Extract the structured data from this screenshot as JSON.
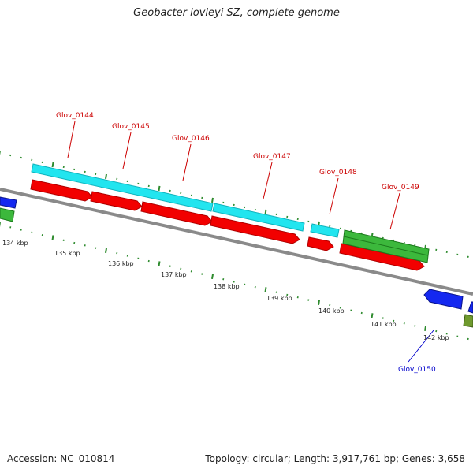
{
  "title": "Geobacter lovleyi SZ, complete genome",
  "footer": {
    "accession": "Accession: NC_010814",
    "summary": "Topology: circular; Length: 3,917,761 bp; Genes: 3,658"
  },
  "colors": {
    "backbone": "#8a8a8a",
    "tick": "#2e8b2e",
    "gene_label_red": "#cc0000",
    "gene_label_blue": "#0000cc",
    "cyan": "#22e5ef",
    "red": "#f20000",
    "green": "#3cb83c",
    "blue": "#1428f0",
    "olive": "#6f9a2e"
  },
  "map": {
    "tick_labels": [
      "134 kbp",
      "135 kbp",
      "136 kbp",
      "137 kbp",
      "138 kbp",
      "139 kbp",
      "140 kbp",
      "141 kbp",
      "142 kbp"
    ],
    "gene_labels": [
      {
        "text": "Glov_0144",
        "color": "red"
      },
      {
        "text": "Glov_0145",
        "color": "red"
      },
      {
        "text": "Glov_0146",
        "color": "red"
      },
      {
        "text": "Glov_0147",
        "color": "red"
      },
      {
        "text": "Glov_0148",
        "color": "red"
      },
      {
        "text": "Glov_0149",
        "color": "red"
      },
      {
        "text": "Glov_0150",
        "color": "blue"
      }
    ]
  }
}
